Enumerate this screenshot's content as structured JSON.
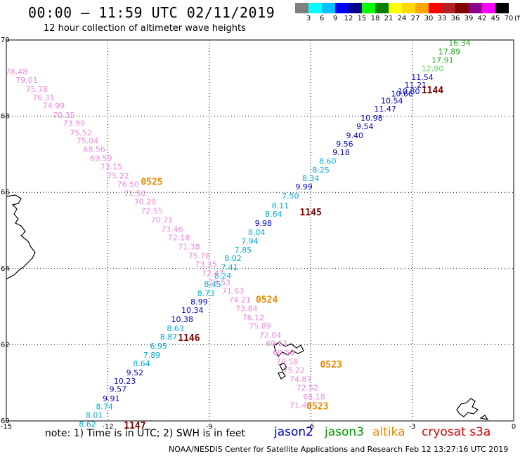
{
  "header": {
    "title": "00:00 – 11:59 UTC 02/11/2019",
    "subtitle": "12 hour collection of altimeter wave heights"
  },
  "legend": {
    "unit": "(ft)",
    "labels": [
      "3",
      "6",
      "9",
      "12",
      "15",
      "18",
      "21",
      "24",
      "27",
      "30",
      "33",
      "36",
      "39",
      "42",
      "45",
      "70"
    ],
    "colors": [
      "#808080",
      "#00ffff",
      "#00bfff",
      "#0000ff",
      "#00008b",
      "#00ff00",
      "#008000",
      "#ffff00",
      "#ffd700",
      "#ffa500",
      "#ff0000",
      "#b22222",
      "#800000",
      "#8b008b",
      "#ff00ff",
      "#000000"
    ]
  },
  "axes": {
    "lon_ticks": [
      "-15",
      "-12",
      "-9",
      "-6",
      "-3",
      "0"
    ],
    "lat_ticks": [
      "60",
      "62",
      "64",
      "66",
      "68",
      "70"
    ]
  },
  "map": {
    "lon_range": [
      -15,
      0
    ],
    "lat_range": [
      60,
      70
    ]
  },
  "chart_data": {
    "type": "scatter",
    "passes": [
      {
        "label": "1144",
        "satellite": "jason2",
        "color": "#800000",
        "labelPos": [
          -2.4,
          68.6
        ],
        "points": [
          {
            "lon": -1.6,
            "lat": 69.85,
            "v": "16.34",
            "c": "#22aa22"
          },
          {
            "lon": -1.9,
            "lat": 69.62,
            "v": "17.89",
            "c": "#22aa22"
          },
          {
            "lon": -2.1,
            "lat": 69.4,
            "v": "17.91",
            "c": "#22aa22"
          },
          {
            "lon": -2.4,
            "lat": 69.18,
            "v": "12.90",
            "c": "#66dd66"
          },
          {
            "lon": -2.7,
            "lat": 68.95,
            "v": "11.54",
            "c": "#0000cc"
          },
          {
            "lon": -2.9,
            "lat": 68.75,
            "v": "11.21",
            "c": "#0000cc"
          },
          {
            "lon": -3.1,
            "lat": 68.58,
            "v": "10.80",
            "c": "#0000cc"
          },
          {
            "lon": -3.3,
            "lat": 68.52,
            "v": "10.66",
            "c": "#0000cc"
          },
          {
            "lon": -3.6,
            "lat": 68.33,
            "v": "10.54",
            "c": "#0000cc"
          },
          {
            "lon": -3.8,
            "lat": 68.12,
            "v": "11.47",
            "c": "#0000cc"
          },
          {
            "lon": -4.2,
            "lat": 67.88,
            "v": "10.98",
            "c": "#0000cc"
          },
          {
            "lon": -4.4,
            "lat": 67.66,
            "v": "9.54",
            "c": "#0000cc"
          },
          {
            "lon": -4.7,
            "lat": 67.42,
            "v": "9.40",
            "c": "#0000cc"
          },
          {
            "lon": -5.0,
            "lat": 67.2,
            "v": "9.56",
            "c": "#0000cc"
          },
          {
            "lon": -5.1,
            "lat": 66.98,
            "v": "9.18",
            "c": "#0000cc"
          },
          {
            "lon": -5.5,
            "lat": 66.75,
            "v": "8.60",
            "c": "#00aadd"
          },
          {
            "lon": -5.7,
            "lat": 66.52,
            "v": "8.25",
            "c": "#00aadd"
          },
          {
            "lon": -6.0,
            "lat": 66.3,
            "v": "8.34",
            "c": "#00aadd"
          },
          {
            "lon": -6.2,
            "lat": 66.08,
            "v": "9.99",
            "c": "#0000cc"
          },
          {
            "lon": -6.6,
            "lat": 65.84,
            "v": "7.50",
            "c": "#00aadd"
          }
        ]
      },
      {
        "label": "1145",
        "satellite": "cryosat",
        "color": "#800000",
        "labelPos": [
          -6.0,
          65.4
        ],
        "points": [
          {
            "lon": -6.9,
            "lat": 65.58,
            "v": "8.11",
            "c": "#00aadd"
          },
          {
            "lon": -7.1,
            "lat": 65.36,
            "v": "8.64",
            "c": "#00aadd"
          },
          {
            "lon": -7.4,
            "lat": 65.12,
            "v": "9.98",
            "c": "#0000cc"
          },
          {
            "lon": -7.6,
            "lat": 64.88,
            "v": "8.04",
            "c": "#00aadd"
          },
          {
            "lon": -7.8,
            "lat": 64.65,
            "v": "7.94",
            "c": "#00aadd"
          },
          {
            "lon": -8.0,
            "lat": 64.42,
            "v": "7.85",
            "c": "#00aadd"
          },
          {
            "lon": -8.3,
            "lat": 64.2,
            "v": "8.02",
            "c": "#00aadd"
          },
          {
            "lon": -8.4,
            "lat": 63.96,
            "v": "7.41",
            "c": "#00aadd"
          },
          {
            "lon": -8.6,
            "lat": 63.74,
            "v": "8.24",
            "c": "#00aadd"
          },
          {
            "lon": -8.9,
            "lat": 63.52,
            "v": "8.45",
            "c": "#00aadd"
          },
          {
            "lon": -9.1,
            "lat": 63.28,
            "v": "8.73",
            "c": "#00aadd"
          },
          {
            "lon": -9.3,
            "lat": 63.06,
            "v": "8.99",
            "c": "#0000cc"
          },
          {
            "lon": -9.5,
            "lat": 62.84,
            "v": "10.34",
            "c": "#0000cc"
          },
          {
            "lon": -9.8,
            "lat": 62.6,
            "v": "10.38",
            "c": "#0000cc"
          },
          {
            "lon": -10.0,
            "lat": 62.36,
            "v": "8.63",
            "c": "#00aadd"
          },
          {
            "lon": -10.2,
            "lat": 62.14,
            "v": "8.87",
            "c": "#00aadd"
          }
        ]
      },
      {
        "label": "1146",
        "satellite": "cryosat",
        "color": "#800000",
        "labelPos": [
          -9.6,
          62.1
        ],
        "points": [
          {
            "lon": -10.5,
            "lat": 61.9,
            "v": "6.95",
            "c": "#00aadd"
          },
          {
            "lon": -10.7,
            "lat": 61.66,
            "v": "7.89",
            "c": "#00aadd"
          },
          {
            "lon": -11.0,
            "lat": 61.44,
            "v": "8.64",
            "c": "#00aadd"
          },
          {
            "lon": -11.2,
            "lat": 61.2,
            "v": "9.52",
            "c": "#0000cc"
          },
          {
            "lon": -11.5,
            "lat": 60.98,
            "v": "10.23",
            "c": "#0000cc"
          },
          {
            "lon": -11.7,
            "lat": 60.76,
            "v": "9.57",
            "c": "#0000cc"
          },
          {
            "lon": -11.9,
            "lat": 60.52,
            "v": "9.91",
            "c": "#0000cc"
          },
          {
            "lon": -12.1,
            "lat": 60.3,
            "v": "8.74",
            "c": "#00aadd"
          },
          {
            "lon": -12.4,
            "lat": 60.08,
            "v": "8.01",
            "c": "#00aadd"
          },
          {
            "lon": -12.6,
            "lat": 59.84,
            "v": "8.62",
            "c": "#00aadd"
          }
        ]
      },
      {
        "label": "1147",
        "satellite": "cryosat",
        "color": "#800000",
        "labelPos": [
          -11.2,
          59.8
        ],
        "points": []
      },
      {
        "label": "0525",
        "satellite": "altika",
        "color": "#ee8800",
        "labelPos": [
          -10.7,
          66.2
        ],
        "points": [
          {
            "lon": -14.7,
            "lat": 69.1,
            "v": "78.48",
            "c": "#ee88dd"
          },
          {
            "lon": -14.4,
            "lat": 68.88,
            "v": "79.01",
            "c": "#ee88dd"
          },
          {
            "lon": -14.1,
            "lat": 68.64,
            "v": "75.78",
            "c": "#ee88dd"
          },
          {
            "lon": -13.9,
            "lat": 68.42,
            "v": "76.31",
            "c": "#ee88dd"
          },
          {
            "lon": -13.6,
            "lat": 68.2,
            "v": "74.99",
            "c": "#ee88dd"
          },
          {
            "lon": -13.3,
            "lat": 67.96,
            "v": "70.35",
            "c": "#ee88dd"
          },
          {
            "lon": -13.0,
            "lat": 67.74,
            "v": "73.99",
            "c": "#ee88dd"
          },
          {
            "lon": -12.8,
            "lat": 67.5,
            "v": "75.52",
            "c": "#ee88dd"
          },
          {
            "lon": -12.6,
            "lat": 67.28,
            "v": "75.04",
            "c": "#ee88dd"
          },
          {
            "lon": -12.4,
            "lat": 67.06,
            "v": "68.56",
            "c": "#ee88dd"
          },
          {
            "lon": -12.2,
            "lat": 66.82,
            "v": "69.59",
            "c": "#ee88dd"
          },
          {
            "lon": -11.9,
            "lat": 66.6,
            "v": "73.15",
            "c": "#ee88dd"
          },
          {
            "lon": -11.7,
            "lat": 66.36,
            "v": "75.22",
            "c": "#ee88dd"
          },
          {
            "lon": -11.4,
            "lat": 66.14,
            "v": "76.50",
            "c": "#ee88dd"
          },
          {
            "lon": -11.2,
            "lat": 65.9,
            "v": "71.50",
            "c": "#ee88dd"
          },
          {
            "lon": -10.9,
            "lat": 65.68,
            "v": "70.20",
            "c": "#ee88dd"
          },
          {
            "lon": -10.7,
            "lat": 65.44,
            "v": "72.55",
            "c": "#ee88dd"
          },
          {
            "lon": -10.4,
            "lat": 65.2,
            "v": "70.71",
            "c": "#ee88dd"
          },
          {
            "lon": -10.1,
            "lat": 64.96,
            "v": "73.46",
            "c": "#ee88dd"
          },
          {
            "lon": -9.9,
            "lat": 64.74,
            "v": "72.18",
            "c": "#ee88dd"
          },
          {
            "lon": -9.6,
            "lat": 64.5,
            "v": "71.38",
            "c": "#ee88dd"
          },
          {
            "lon": -9.3,
            "lat": 64.26,
            "v": "75.78",
            "c": "#ee88dd"
          },
          {
            "lon": -9.1,
            "lat": 64.04,
            "v": "73.35",
            "c": "#ee88dd"
          },
          {
            "lon": -8.9,
            "lat": 63.8,
            "v": "72.47",
            "c": "#ee88dd"
          },
          {
            "lon": -8.7,
            "lat": 63.56,
            "v": "73.53",
            "c": "#ee88dd"
          },
          {
            "lon": -8.3,
            "lat": 63.34,
            "v": "71.63",
            "c": "#ee88dd"
          },
          {
            "lon": -8.1,
            "lat": 63.1,
            "v": "74.21",
            "c": "#ee88dd"
          },
          {
            "lon": -7.9,
            "lat": 62.88,
            "v": "73.84",
            "c": "#ee88dd"
          },
          {
            "lon": -7.7,
            "lat": 62.64,
            "v": "76.12",
            "c": "#ee88dd"
          },
          {
            "lon": -7.5,
            "lat": 62.42,
            "v": "75.89",
            "c": "#ee88dd"
          }
        ]
      },
      {
        "label": "0524",
        "satellite": "altika",
        "color": "#ee8800",
        "labelPos": [
          -7.3,
          63.1
        ],
        "points": []
      },
      {
        "label": "0523",
        "satellite": "altika",
        "color": "#ee8800",
        "labelPos": [
          -5.4,
          61.4
        ],
        "points": [
          {
            "lon": -7.2,
            "lat": 62.18,
            "v": "72.04",
            "c": "#ee88dd"
          },
          {
            "lon": -7.0,
            "lat": 61.96,
            "v": "69.51",
            "c": "#ee88dd"
          },
          {
            "lon": -6.8,
            "lat": 61.72,
            "v": "69.59",
            "c": "#ee88dd"
          },
          {
            "lon": -6.7,
            "lat": 61.48,
            "v": "74.58",
            "c": "#ee88dd"
          },
          {
            "lon": -6.5,
            "lat": 61.26,
            "v": "75.22",
            "c": "#ee88dd"
          },
          {
            "lon": -6.3,
            "lat": 61.02,
            "v": "74.87",
            "c": "#ee88dd"
          },
          {
            "lon": -6.1,
            "lat": 60.8,
            "v": "72.52",
            "c": "#ee88dd"
          },
          {
            "lon": -5.9,
            "lat": 60.56,
            "v": "68.18",
            "c": "#ee88dd"
          },
          {
            "lon": -6.3,
            "lat": 60.34,
            "v": "71.45",
            "c": "#ee88dd"
          }
        ]
      },
      {
        "label": "0523",
        "satellite": "altika",
        "color": "#ee8800",
        "labelPos": [
          -5.8,
          60.3
        ],
        "points": []
      }
    ]
  },
  "footer": {
    "note": "note: 1) Time is in UTC; 2) SWH is in feet",
    "satellites": [
      {
        "name": "jason2",
        "color": "#0000cc"
      },
      {
        "name": "jason3",
        "color": "#009900"
      },
      {
        "name": "altika",
        "color": "#ee8800"
      },
      {
        "name": "cryosat s3a",
        "color": "#dd0000"
      }
    ],
    "credit": "NOAA/NESDIS Center for Satellite Applications and Research   Feb 12 13:27:16 UTC 2019"
  }
}
